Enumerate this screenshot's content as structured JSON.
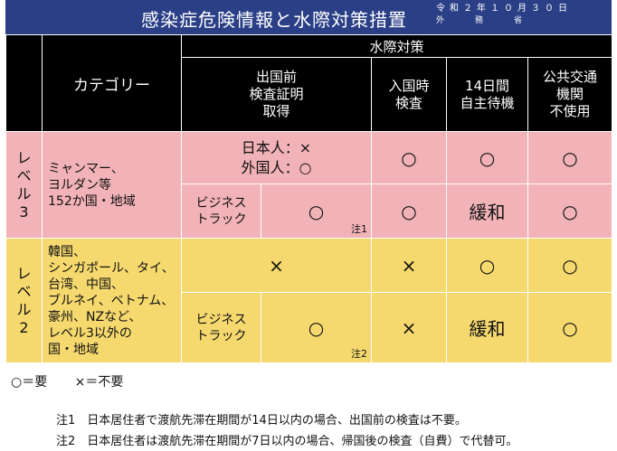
{
  "header": {
    "title": "感染症危険情報と水際対策措置",
    "date": "令和２年１０月３０日",
    "org": "外務省"
  },
  "table": {
    "category_header": "カテゴリー",
    "water_header": "水際対策",
    "col_pretest": [
      "出国前",
      "検査証明",
      "取得"
    ],
    "col_entry": [
      "入国時",
      "検査"
    ],
    "col_14day": [
      "14日間",
      "自主待機"
    ],
    "col_transit": [
      "公共交通",
      "機関",
      "不使用"
    ]
  },
  "level3": {
    "label": [
      "レ",
      "ベ",
      "ル",
      "3"
    ],
    "category": [
      "ミャンマー、",
      "ヨルダン等",
      "152か国・地域"
    ],
    "pretest_general": [
      "日本人：×",
      "外国人：○"
    ],
    "entry_general": "○",
    "day14_general": "○",
    "transit_general": "○",
    "business_label": [
      "ビジネス",
      "トラック"
    ],
    "pretest_business": "○",
    "note_ref": "注1",
    "entry_business": "○",
    "day14_business": "緩和",
    "transit_business": "○"
  },
  "level2": {
    "label": [
      "レ",
      "ベ",
      "ル",
      "2"
    ],
    "category": [
      "韓国、",
      "シンガポール、タイ、",
      "台湾、中国、",
      "ブルネイ、ベトナム、",
      "豪州、NZなど、",
      "レベル3以外の",
      "国・地域"
    ],
    "pretest_general": "×",
    "entry_general": "×",
    "day14_general": "○",
    "transit_general": "○",
    "business_label": [
      "ビジネス",
      "トラック"
    ],
    "pretest_business": "○",
    "note_ref": "注2",
    "entry_business": "×",
    "day14_business": "緩和",
    "transit_business": "○"
  },
  "legend": {
    "required": "○＝要",
    "not_required": "×＝不要"
  },
  "notes": {
    "note1": "注1　日本居住者で渡航先滞在期間が14日以内の場合、出国前の検査は不要。",
    "note2": "注2　日本居住者は渡航先滞在期間が7日以内の場合、帰国後の検査（自費）で代替可。"
  },
  "colors": {
    "header_bg": "#2a3f86",
    "level3_bg": "#f2b3b8",
    "level2_bg": "#f6d96e",
    "column_header_bg": "#000000"
  }
}
